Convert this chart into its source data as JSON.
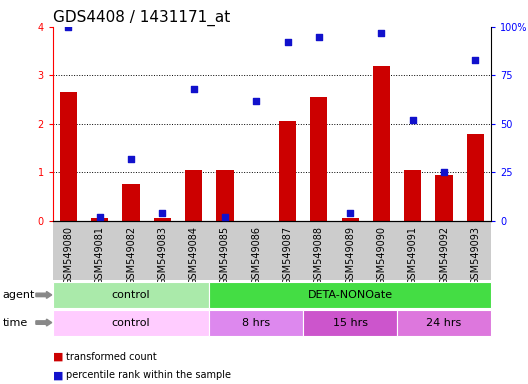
{
  "title": "GDS4408 / 1431171_at",
  "samples": [
    "GSM549080",
    "GSM549081",
    "GSM549082",
    "GSM549083",
    "GSM549084",
    "GSM549085",
    "GSM549086",
    "GSM549087",
    "GSM549088",
    "GSM549089",
    "GSM549090",
    "GSM549091",
    "GSM549092",
    "GSM549093"
  ],
  "bar_values": [
    2.65,
    0.05,
    0.75,
    0.05,
    1.05,
    1.05,
    0.0,
    2.05,
    2.55,
    0.05,
    3.2,
    1.05,
    0.95,
    1.8
  ],
  "dot_values": [
    100,
    2,
    32,
    4,
    68,
    2,
    62,
    92,
    95,
    4,
    97,
    52,
    25,
    83
  ],
  "ylim_left": [
    0,
    4
  ],
  "ylim_right": [
    0,
    100
  ],
  "yticks_left": [
    0,
    1,
    2,
    3,
    4
  ],
  "yticks_right": [
    0,
    25,
    50,
    75,
    100
  ],
  "yticklabels_right": [
    "0",
    "25",
    "50",
    "75",
    "100%"
  ],
  "bar_color": "#cc0000",
  "dot_color": "#1111cc",
  "grid_color": "#000000",
  "agent_row": [
    {
      "label": "control",
      "start": 0,
      "end": 5,
      "color": "#aaeaaa"
    },
    {
      "label": "DETA-NONOate",
      "start": 5,
      "end": 14,
      "color": "#44dd44"
    }
  ],
  "time_row": [
    {
      "label": "control",
      "start": 0,
      "end": 5,
      "color": "#ffccff"
    },
    {
      "label": "8 hrs",
      "start": 5,
      "end": 8,
      "color": "#dd88ee"
    },
    {
      "label": "15 hrs",
      "start": 8,
      "end": 11,
      "color": "#cc55cc"
    },
    {
      "label": "24 hrs",
      "start": 11,
      "end": 14,
      "color": "#dd77dd"
    }
  ],
  "legend_bar_label": "transformed count",
  "legend_dot_label": "percentile rank within the sample",
  "sample_bg_color": "#cccccc",
  "title_fontsize": 11,
  "tick_fontsize": 7,
  "label_fontsize": 8,
  "ann_fontsize": 8
}
